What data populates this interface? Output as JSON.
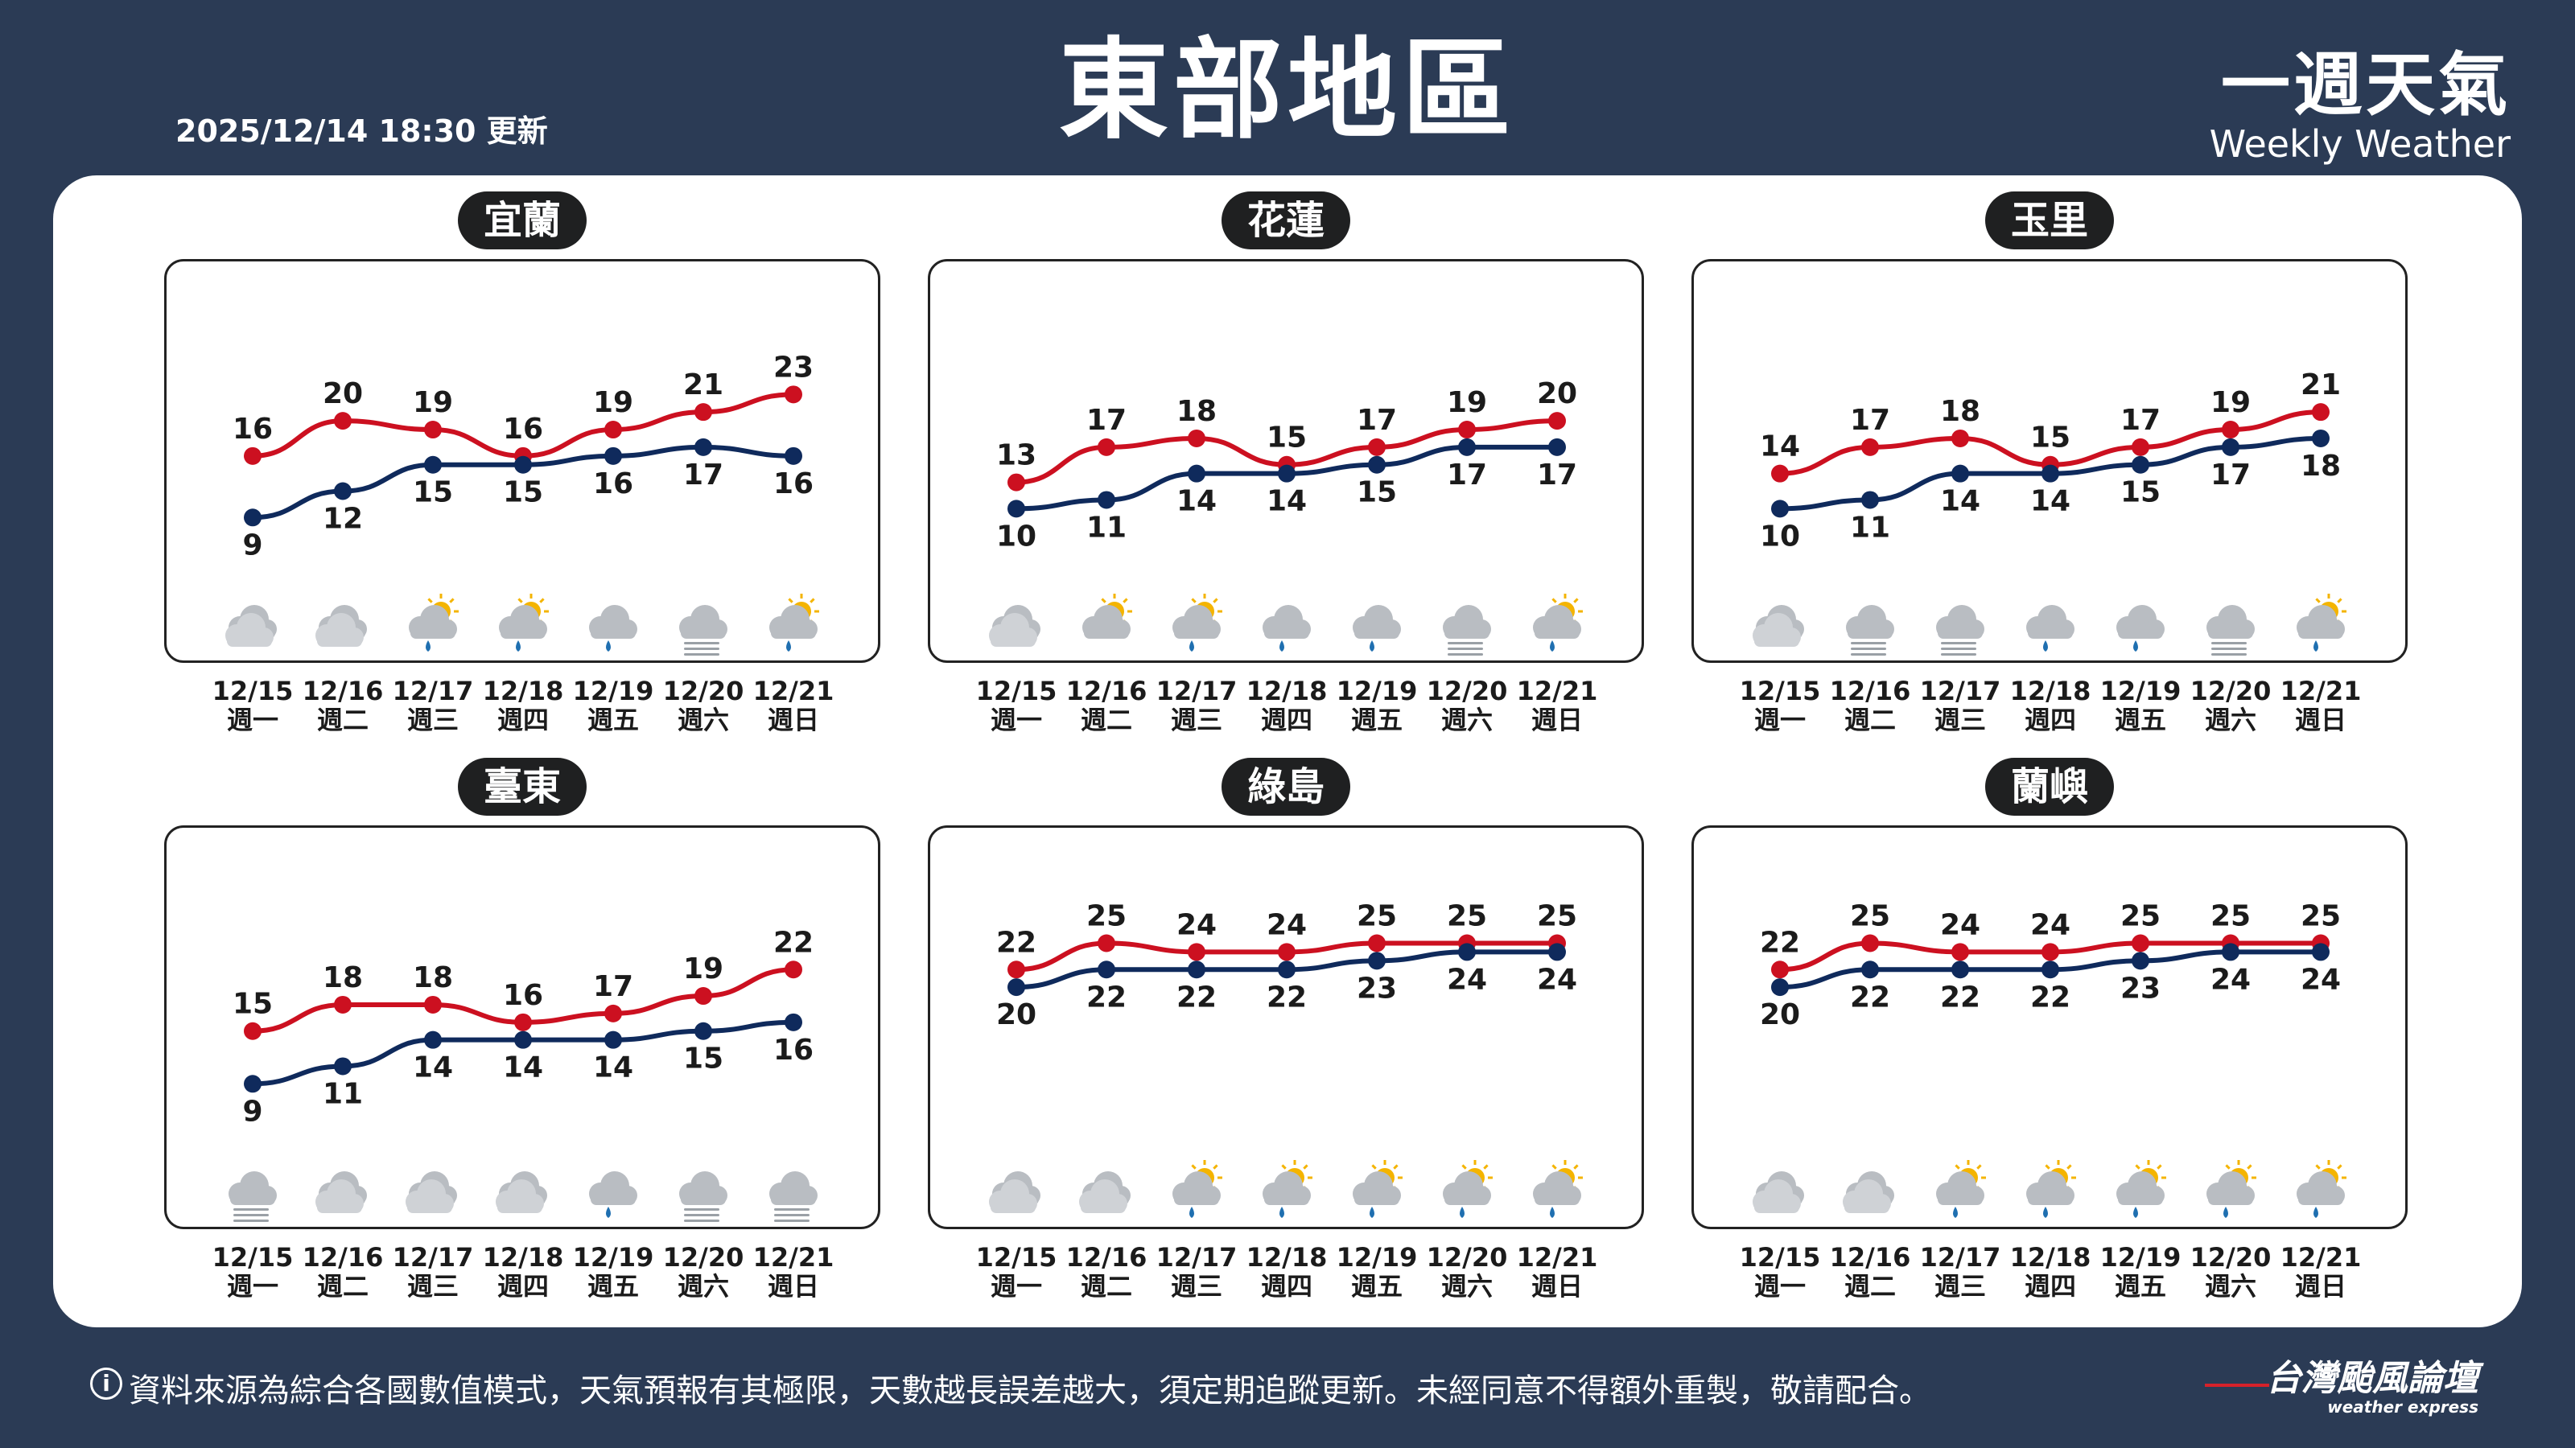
{
  "header": {
    "title": "東部地區",
    "update_time": "2025/12/14 18:30 更新",
    "brand_cn": "一週天氣",
    "brand_en": "Weekly Weather"
  },
  "footer": {
    "info_icon": "i",
    "note": "資料來源為綜合各國數值模式，天氣預報有其極限，天數越長誤差越大，須定期追蹤更新。未經同意不得額外重製，敬請配合。",
    "brand_cn": "台灣颱風論壇",
    "brand_en": "weather express"
  },
  "colors": {
    "high": "#cc1020",
    "low": "#0f2a5c",
    "cloud": "#b9bdc2",
    "sun": "#f4b400",
    "rain": "#1f6fb0"
  },
  "days": [
    {
      "date": "12/15",
      "weekday": "週一"
    },
    {
      "date": "12/16",
      "weekday": "週二"
    },
    {
      "date": "12/17",
      "weekday": "週三"
    },
    {
      "date": "12/18",
      "weekday": "週四"
    },
    {
      "date": "12/19",
      "weekday": "週五"
    },
    {
      "date": "12/20",
      "weekday": "週六"
    },
    {
      "date": "12/21",
      "weekday": "週日"
    }
  ],
  "chart_data": [
    {
      "type": "line",
      "station": "宜蘭",
      "series": [
        {
          "values": [
            16,
            20,
            19,
            16,
            19,
            21,
            23
          ]
        },
        {
          "values": [
            9,
            12,
            15,
            15,
            16,
            17,
            16
          ]
        }
      ],
      "icons": [
        "cloudy",
        "cloudy",
        "partly-sunny-rain",
        "partly-sunny-rain",
        "cloud-rain",
        "cloud-fog",
        "partly-sunny-rain"
      ]
    },
    {
      "type": "line",
      "station": "花蓮",
      "series": [
        {
          "values": [
            13,
            17,
            18,
            15,
            17,
            19,
            20
          ]
        },
        {
          "values": [
            10,
            11,
            14,
            14,
            15,
            17,
            17
          ]
        }
      ],
      "icons": [
        "cloudy",
        "partly-sunny",
        "partly-sunny-rain",
        "cloud-rain",
        "cloud-rain",
        "cloud-fog",
        "partly-sunny-rain"
      ]
    },
    {
      "type": "line",
      "station": "玉里",
      "series": [
        {
          "values": [
            14,
            17,
            18,
            15,
            17,
            19,
            21
          ]
        },
        {
          "values": [
            10,
            11,
            14,
            14,
            15,
            17,
            18
          ]
        }
      ],
      "icons": [
        "cloudy",
        "cloud-fog",
        "cloud-fog",
        "cloud-rain",
        "cloud-rain",
        "cloud-fog",
        "partly-sunny-rain"
      ]
    },
    {
      "type": "line",
      "station": "臺東",
      "series": [
        {
          "values": [
            15,
            18,
            18,
            16,
            17,
            19,
            22
          ]
        },
        {
          "values": [
            9,
            11,
            14,
            14,
            14,
            15,
            16
          ]
        }
      ],
      "icons": [
        "cloud-fog",
        "cloudy",
        "cloudy",
        "cloudy",
        "cloud-rain",
        "cloud-fog",
        "cloud-fog"
      ]
    },
    {
      "type": "line",
      "station": "綠島",
      "series": [
        {
          "values": [
            22,
            25,
            24,
            24,
            25,
            25,
            25
          ]
        },
        {
          "values": [
            20,
            22,
            22,
            22,
            23,
            24,
            24
          ]
        }
      ],
      "icons": [
        "cloudy",
        "cloudy",
        "partly-sunny-rain",
        "partly-sunny-rain",
        "partly-sunny-rain",
        "partly-sunny-rain",
        "partly-sunny-rain"
      ]
    },
    {
      "type": "line",
      "station": "蘭嶼",
      "series": [
        {
          "values": [
            22,
            25,
            24,
            24,
            25,
            25,
            25
          ]
        },
        {
          "values": [
            20,
            22,
            22,
            22,
            23,
            24,
            24
          ]
        }
      ],
      "icons": [
        "cloudy",
        "cloudy",
        "partly-sunny-rain",
        "partly-sunny-rain",
        "partly-sunny-rain",
        "partly-sunny-rain",
        "partly-sunny-rain"
      ]
    }
  ]
}
